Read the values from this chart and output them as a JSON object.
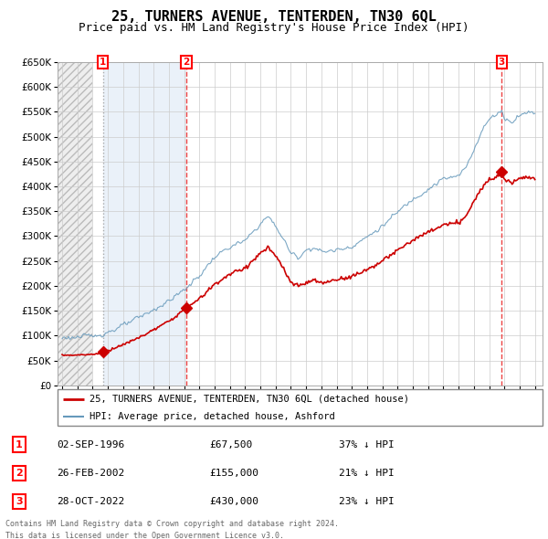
{
  "title": "25, TURNERS AVENUE, TENTERDEN, TN30 6QL",
  "subtitle": "Price paid vs. HM Land Registry's House Price Index (HPI)",
  "sale_labels": [
    "1",
    "2",
    "3"
  ],
  "sale_date_strs": [
    "02-SEP-1996",
    "26-FEB-2002",
    "28-OCT-2022"
  ],
  "sale_price_strs": [
    "£67,500",
    "£155,000",
    "£430,000"
  ],
  "sale_hpi_strs": [
    "37% ↓ HPI",
    "21% ↓ HPI",
    "23% ↓ HPI"
  ],
  "sale_year_floats": [
    1996.67,
    2002.15,
    2022.83
  ],
  "sale_prices": [
    67500,
    155000,
    430000
  ],
  "legend_line1": "25, TURNERS AVENUE, TENTERDEN, TN30 6QL (detached house)",
  "legend_line2": "HPI: Average price, detached house, Ashford",
  "footer_line1": "Contains HM Land Registry data © Crown copyright and database right 2024.",
  "footer_line2": "This data is licensed under the Open Government Licence v3.0.",
  "ylim": [
    0,
    650000
  ],
  "yticks": [
    0,
    50000,
    100000,
    150000,
    200000,
    250000,
    300000,
    350000,
    400000,
    450000,
    500000,
    550000,
    600000,
    650000
  ],
  "ytick_labels": [
    "£0",
    "£50K",
    "£100K",
    "£150K",
    "£200K",
    "£250K",
    "£300K",
    "£350K",
    "£400K",
    "£450K",
    "£500K",
    "£550K",
    "£600K",
    "£650K"
  ],
  "xlim_start": 1993.7,
  "xlim_end": 2025.5,
  "background_color": "#ffffff",
  "grid_color": "#cccccc",
  "red_line_color": "#cc0000",
  "blue_line_color": "#6699bb",
  "dashed_line_color_red": "#ee4444",
  "dashed_line_color_gray": "#aaaaaa",
  "hatch_fill_color": "#e8e8e8",
  "blue_shade_color": "#dde8f5",
  "title_fontsize": 11,
  "subtitle_fontsize": 9
}
